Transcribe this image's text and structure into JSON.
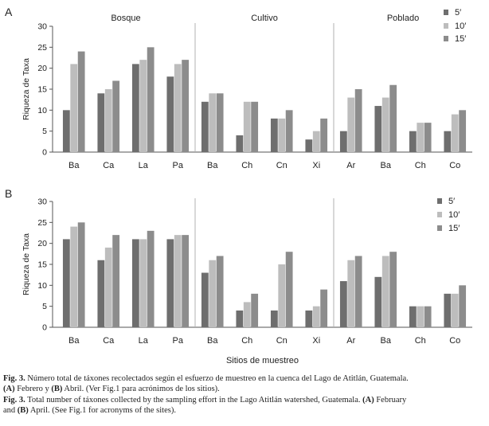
{
  "colors": {
    "s5": "#6e6e6e",
    "s10": "#bdbdbd",
    "s15": "#8c8c8c",
    "axis": "#555555"
  },
  "chart_data": [
    {
      "type": "bar",
      "panel": "A",
      "ylabel": "Riqueza de Taxa",
      "xlabel": "",
      "ylim": [
        0,
        30
      ],
      "yticks": [
        0,
        5,
        10,
        15,
        20,
        25,
        30
      ],
      "legend_position": "top-right",
      "groups": [
        {
          "name": "Bosque",
          "categories": [
            "Ba",
            "Ca",
            "La",
            "Pa"
          ]
        },
        {
          "name": "Cultivo",
          "categories": [
            "Ba",
            "Ch",
            "Cn",
            "Xi"
          ]
        },
        {
          "name": "Poblado",
          "categories": [
            "Ar",
            "Ba",
            "Ch",
            "Co"
          ]
        }
      ],
      "categories": [
        "Ba",
        "Ca",
        "La",
        "Pa",
        "Ba",
        "Ch",
        "Cn",
        "Xi",
        "Ar",
        "Ba",
        "Ch",
        "Co"
      ],
      "series": [
        {
          "name": "5′",
          "values": [
            10,
            14,
            21,
            18,
            12,
            4,
            8,
            3,
            5,
            11,
            5,
            5
          ]
        },
        {
          "name": "10′",
          "values": [
            21,
            15,
            22,
            21,
            14,
            12,
            8,
            5,
            13,
            13,
            7,
            9
          ]
        },
        {
          "name": "15′",
          "values": [
            24,
            17,
            25,
            22,
            14,
            12,
            10,
            8,
            15,
            16,
            7,
            10
          ]
        }
      ]
    },
    {
      "type": "bar",
      "panel": "B",
      "ylabel": "Riqueza de Taxa",
      "xlabel": "Sitios de muestreo",
      "ylim": [
        0,
        30
      ],
      "yticks": [
        0,
        5,
        10,
        15,
        20,
        25,
        30
      ],
      "legend_position": "top-right",
      "groups": [
        {
          "name": "",
          "categories": [
            "Ba",
            "Ca",
            "La",
            "Pa"
          ]
        },
        {
          "name": "",
          "categories": [
            "Ba",
            "Ch",
            "Cn",
            "Xi"
          ]
        },
        {
          "name": "",
          "categories": [
            "Ar",
            "Ba",
            "Ch",
            "Co"
          ]
        }
      ],
      "categories": [
        "Ba",
        "Ca",
        "La",
        "Pa",
        "Ba",
        "Ch",
        "Cn",
        "Xi",
        "Ar",
        "Ba",
        "Ch",
        "Co"
      ],
      "series": [
        {
          "name": "5′",
          "values": [
            21,
            16,
            21,
            21,
            13,
            4,
            4,
            4,
            11,
            12,
            5,
            8
          ]
        },
        {
          "name": "10′",
          "values": [
            24,
            19,
            21,
            22,
            16,
            6,
            15,
            5,
            16,
            17,
            5,
            8
          ]
        },
        {
          "name": "15′",
          "values": [
            25,
            22,
            23,
            22,
            17,
            8,
            18,
            9,
            17,
            18,
            5,
            10
          ]
        }
      ]
    }
  ],
  "caption": {
    "es_label": "Fig. 3.",
    "es_text_1": " Número total de táxones recolectados según el esfuerzo de muestreo en la cuenca del Lago de Atitlán, Guatemala.",
    "es_a": "(A)",
    "es_text_2": " Febrero y ",
    "es_b": "(B)",
    "es_text_3": " Abril. (Ver Fig.1 para acrónimos de los sitios).",
    "en_label": "Fig. 3.",
    "en_text_1": " Total number of táxones collected by the sampling effort in the Lago Atitlán watershed, Guatemala. ",
    "en_a": "(A)",
    "en_text_2": " February",
    "en_text_3": "and ",
    "en_b": "(B)",
    "en_text_4": " April. (See Fig.1 for acronyms of the sites)."
  }
}
